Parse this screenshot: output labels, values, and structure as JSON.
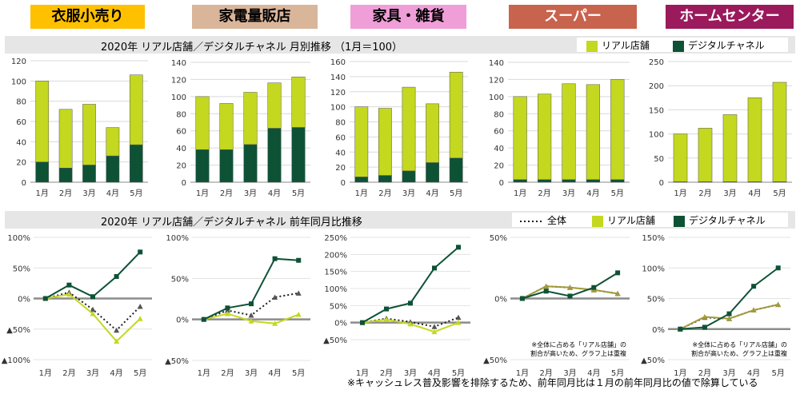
{
  "categories_header": [
    {
      "label": "衣服小売り",
      "bg": "#ffc000",
      "fg": "#000000"
    },
    {
      "label": "家電量販店",
      "bg": "#d9b59a",
      "fg": "#000000"
    },
    {
      "label": "家具・雑貨",
      "bg": "#f09ed8",
      "fg": "#000000"
    },
    {
      "label": "スーパー",
      "bg": "#c8634e",
      "fg": "#ffffff"
    },
    {
      "label": "ホームセンター",
      "bg": "#9a1a5c",
      "fg": "#ffffff"
    }
  ],
  "colors": {
    "real": "#c3d81f",
    "digital": "#0e5236",
    "overall": "#1f1f1f",
    "real_line": "#a39a3a"
  },
  "band1": {
    "title": "2020年 リアル店舗／デジタルチャネル  月別推移 （1月＝100）",
    "legend": [
      "リアル店舗",
      "デジタルチャネル"
    ]
  },
  "band2": {
    "title": "2020年 リアル店舗／デジタルチャネル 前年同月比推移",
    "legend": [
      "全体",
      "リアル店舗",
      "デジタルチャネル"
    ]
  },
  "footnote": "※キャッシュレス普及影響を排除するため、前年同月比は１月の前年同月比の値で除算している",
  "chart_data": [
    {
      "type": "bar",
      "stacked": true,
      "title": "衣服小売り",
      "categories": [
        "1月",
        "2月",
        "3月",
        "4月",
        "5月"
      ],
      "ylim": [
        0,
        120
      ],
      "yticks": [
        0,
        20,
        40,
        60,
        80,
        100,
        120
      ],
      "series": [
        {
          "name": "デジタルチャネル",
          "values": [
            20,
            14,
            17,
            26,
            37
          ]
        },
        {
          "name": "リアル店舗",
          "values": [
            80,
            58,
            60,
            28,
            69
          ]
        }
      ]
    },
    {
      "type": "bar",
      "stacked": true,
      "title": "家電量販店",
      "categories": [
        "1月",
        "2月",
        "3月",
        "4月",
        "5月"
      ],
      "ylim": [
        0,
        140
      ],
      "yticks": [
        0,
        20,
        40,
        60,
        80,
        100,
        120,
        140
      ],
      "series": [
        {
          "name": "デジタルチャネル",
          "values": [
            38,
            38,
            44,
            63,
            64
          ]
        },
        {
          "name": "リアル店舗",
          "values": [
            62,
            54,
            61,
            53,
            59
          ]
        }
      ]
    },
    {
      "type": "bar",
      "stacked": true,
      "title": "家具・雑貨",
      "categories": [
        "1月",
        "2月",
        "3月",
        "4月",
        "5月"
      ],
      "ylim": [
        0,
        160
      ],
      "yticks": [
        0,
        20,
        40,
        60,
        80,
        100,
        120,
        140,
        160
      ],
      "series": [
        {
          "name": "デジタルチャネル",
          "values": [
            7,
            9,
            15,
            26,
            32
          ]
        },
        {
          "name": "リアル店舗",
          "values": [
            93,
            89,
            111,
            78,
            114
          ]
        }
      ]
    },
    {
      "type": "bar",
      "stacked": true,
      "title": "スーパー",
      "categories": [
        "1月",
        "2月",
        "3月",
        "4月",
        "5月"
      ],
      "ylim": [
        0,
        140
      ],
      "yticks": [
        0,
        20,
        40,
        60,
        80,
        100,
        120,
        140
      ],
      "series": [
        {
          "name": "デジタルチャネル",
          "values": [
            3,
            3,
            3,
            3,
            3
          ]
        },
        {
          "name": "リアル店舗",
          "values": [
            97,
            100,
            112,
            111,
            117
          ]
        }
      ]
    },
    {
      "type": "bar",
      "stacked": true,
      "title": "ホームセンター",
      "categories": [
        "1月",
        "2月",
        "3月",
        "4月",
        "5月"
      ],
      "ylim": [
        0,
        250
      ],
      "yticks": [
        0,
        50,
        100,
        150,
        200,
        250
      ],
      "series": [
        {
          "name": "デジタルチャネル",
          "values": [
            1,
            1,
            1,
            1,
            1
          ]
        },
        {
          "name": "リアル店舗",
          "values": [
            99,
            111,
            139,
            174,
            206
          ]
        }
      ]
    },
    {
      "type": "line",
      "title": "衣服小売り 前年同月比",
      "categories": [
        "1月",
        "2月",
        "3月",
        "4月",
        "5月"
      ],
      "ylim": [
        -100,
        100
      ],
      "yticks": [
        {
          "v": -100,
          "label": "▲100%"
        },
        {
          "v": -50,
          "label": "▲50%"
        },
        {
          "v": 0,
          "label": "0%"
        },
        {
          "v": 50,
          "label": "50%"
        },
        {
          "v": 100,
          "label": "100%"
        }
      ],
      "series": [
        {
          "name": "全体",
          "values": [
            0,
            10,
            -18,
            -52,
            -13
          ]
        },
        {
          "name": "リアル店舗",
          "values": [
            0,
            7,
            -25,
            -70,
            -33
          ]
        },
        {
          "name": "デジタルチャネル",
          "values": [
            0,
            22,
            3,
            36,
            76
          ]
        }
      ]
    },
    {
      "type": "line",
      "title": "家電量販店 前年同月比",
      "categories": [
        "1月",
        "2月",
        "3月",
        "4月",
        "5月"
      ],
      "ylim": [
        -50,
        100
      ],
      "yticks": [
        {
          "v": -50,
          "label": "▲50%"
        },
        {
          "v": 0,
          "label": "0%"
        },
        {
          "v": 50,
          "label": "50%"
        },
        {
          "v": 100,
          "label": "100%"
        }
      ],
      "series": [
        {
          "name": "全体",
          "values": [
            0,
            11,
            5,
            27,
            32
          ]
        },
        {
          "name": "リアル店舗",
          "values": [
            0,
            7,
            -2,
            -5,
            6
          ]
        },
        {
          "name": "デジタルチャネル",
          "values": [
            0,
            14,
            19,
            74,
            72
          ]
        }
      ]
    },
    {
      "type": "line",
      "title": "家具・雑貨 前年同月比",
      "categories": [
        "1月",
        "2月",
        "3月",
        "4月",
        "5月"
      ],
      "ylim": [
        -50,
        250
      ],
      "yticks": [
        {
          "v": -50,
          "label": "▲50%"
        },
        {
          "v": 0,
          "label": "0%"
        },
        {
          "v": 50,
          "label": "50%"
        },
        {
          "v": 100,
          "label": "100%"
        },
        {
          "v": 150,
          "label": "150%"
        },
        {
          "v": 200,
          "label": "200%"
        },
        {
          "v": 250,
          "label": "250%"
        }
      ],
      "series": [
        {
          "name": "全体",
          "values": [
            0,
            12,
            2,
            -12,
            15
          ]
        },
        {
          "name": "リアル店舗",
          "values": [
            0,
            9,
            -4,
            -27,
            0
          ]
        },
        {
          "name": "デジタルチャネル",
          "values": [
            0,
            40,
            57,
            160,
            221
          ]
        }
      ]
    },
    {
      "type": "line",
      "title": "スーパー 前年同月比",
      "categories": [
        "1月",
        "2月",
        "3月",
        "4月",
        "5月"
      ],
      "ylim": [
        -50,
        50
      ],
      "yticks": [
        {
          "v": -50,
          "label": "▲50%"
        },
        {
          "v": 0,
          "label": "0%"
        },
        {
          "v": 50,
          "label": "50%"
        }
      ],
      "annotation": [
        "※全体に占める「リアル店舗」の",
        "割合が高いため、グラフ上は重複"
      ],
      "series": [
        {
          "name": "全体",
          "values": [
            0,
            10,
            9,
            7,
            4
          ]
        },
        {
          "name": "リアル店舗",
          "values": [
            0,
            10,
            9,
            7,
            4
          ]
        },
        {
          "name": "デジタルチャネル",
          "values": [
            0,
            6,
            2,
            9,
            21
          ]
        }
      ]
    },
    {
      "type": "line",
      "title": "ホームセンター 前年同月比",
      "categories": [
        "1月",
        "2月",
        "3月",
        "4月",
        "5月"
      ],
      "ylim": [
        -50,
        150
      ],
      "yticks": [
        {
          "v": -50,
          "label": "▲50%"
        },
        {
          "v": 0,
          "label": "0%"
        },
        {
          "v": 50,
          "label": "50%"
        },
        {
          "v": 100,
          "label": "100%"
        },
        {
          "v": 150,
          "label": "150%"
        }
      ],
      "annotation": [
        "※全体に占める「リアル店舗」の",
        "割合が高いため、グラフ上は重複"
      ],
      "series": [
        {
          "name": "全体",
          "values": [
            0,
            19,
            17,
            31,
            40
          ]
        },
        {
          "name": "リアル店舗",
          "values": [
            0,
            20,
            17,
            31,
            40
          ]
        },
        {
          "name": "デジタルチャネル",
          "values": [
            0,
            3,
            25,
            70,
            100
          ]
        }
      ]
    }
  ]
}
